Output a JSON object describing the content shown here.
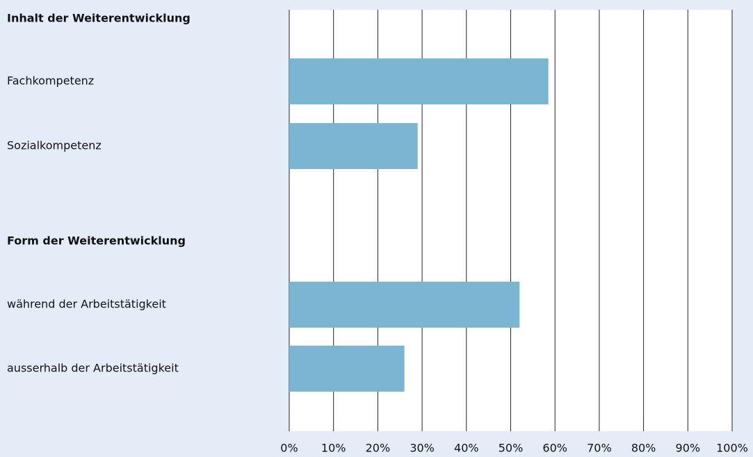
{
  "chart_data": {
    "type": "bar",
    "orientation": "horizontal",
    "color": "#7ab5d1",
    "groups": [
      {
        "title": "Inhalt der Weiterentwicklung",
        "categories": [
          "Fachkompetenz",
          "Sozialkompetenz"
        ],
        "values": [
          58.5,
          29
        ]
      },
      {
        "title": "Form der Weiterentwicklung",
        "categories": [
          "während der Arbeitstätigkeit",
          "ausserhalb der  Arbeitstätigkeit"
        ],
        "values": [
          52,
          26
        ]
      }
    ],
    "xlim": [
      0,
      100
    ],
    "xticks": [
      {
        "value": 0,
        "label": "0%"
      },
      {
        "value": 10,
        "label": "10%"
      },
      {
        "value": 20,
        "label": "20%"
      },
      {
        "value": 30,
        "label": "30%"
      },
      {
        "value": 40,
        "label": "40%"
      },
      {
        "value": 50,
        "label": "50%"
      },
      {
        "value": 60,
        "label": "60%"
      },
      {
        "value": 70,
        "label": "70%"
      },
      {
        "value": 80,
        "label": "80%"
      },
      {
        "value": 90,
        "label": "90%"
      },
      {
        "value": 100,
        "label": "100%"
      }
    ],
    "grid": true
  }
}
